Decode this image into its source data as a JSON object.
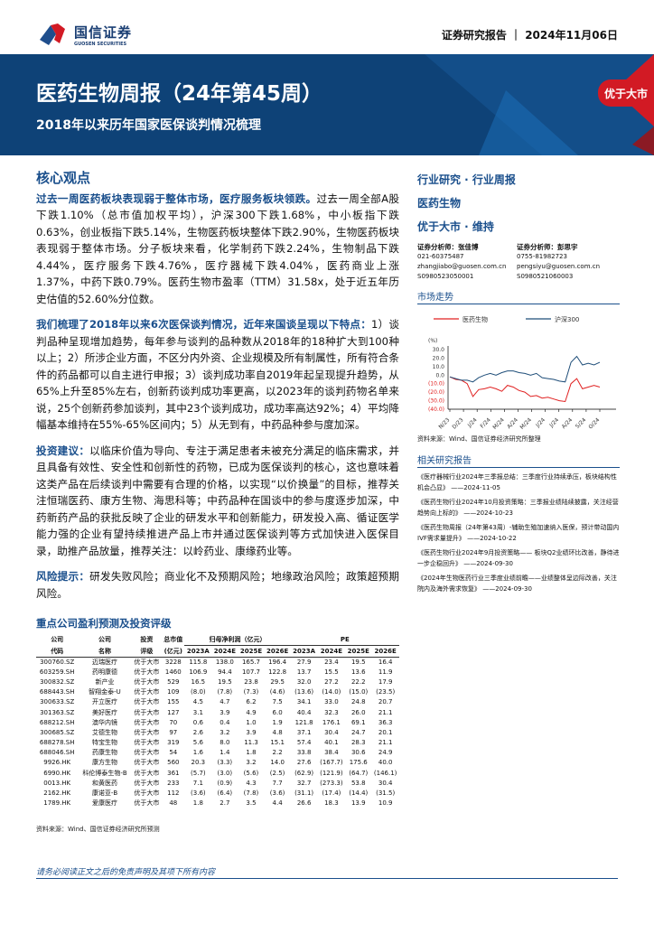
{
  "header": {
    "logo_cn": "国信证券",
    "logo_en": "GUOSEN SECURITIES",
    "doc_type": "证券研究报告",
    "date": "2024年11月06日"
  },
  "banner": {
    "title": "医药生物周报（24年第45周）",
    "subtitle": "2018年以来历年国家医保谈判情况梳理",
    "rating": "优于大市"
  },
  "core": {
    "heading": "核心观点",
    "paras": [
      {
        "lead": "过去一周医药板块表现弱于整体市场，医疗服务板块领跌。",
        "text": "过去一周全部A股下跌1.10%（总市值加权平均），沪深300下跌1.68%，中小板指下跌0.63%，创业板指下跌5.14%，生物医药板块整体下跌2.90%，生物医药板块表现弱于整体市场。分子板块来看，化学制药下跌2.24%，生物制品下跌4.44%，医疗服务下跌4.76%，医疗器械下跌4.04%，医药商业上涨1.37%，中药下跌0.79%。医药生物市盈率（TTM）31.58x，处于近五年历史估值的52.60%分位数。"
      },
      {
        "lead": "我们梳理了2018年以来6次医保谈判情况，近年来国谈呈现以下特点：",
        "text": "1）谈判品种呈现增加趋势，每年参与谈判的品种数从2018年的18种扩大到100种以上；2）所涉企业方面，不区分内外资、企业规模及所有制属性，所有符合条件的药品都可以自主进行申报；3）谈判成功率自2019年起呈现提升趋势，从65%上升至85%左右，创新药谈判成功率更高，以2023年的谈判药物名单来说，25个创新药参加谈判，其中23个谈判成功，成功率高达92%；4）平均降幅基本维持在55%-65%区间内；5）从无到有，中药品种参与度加深。"
      },
      {
        "lead": "投资建议：",
        "text": "以临床价值为导向、专注于满足患者未被充分满足的临床需求，并且具备有效性、安全性和创新性的药物，已成为医保谈判的核心，这也意味着这类产品在后续谈判中需要有合理的价格，以实现“以价换量”的目标，推荐关注恒瑞医药、康方生物、海思科等；中药品种在国谈中的参与度逐步加深，中药新药产品的获批反映了企业的研发水平和创新能力，研发投入高、循证医学能力强的企业有望持续推进产品上市并通过医保谈判等方式加快进入医保目录，助推产品放量，推荐关注：以岭药业、康缘药业等。"
      },
      {
        "lead": "风险提示：",
        "text": "研发失败风险；商业化不及预期风险；地缘政治风险；政策超预期风险。"
      }
    ]
  },
  "side": {
    "category": "行业研究 · 行业周报",
    "industry": "医药生物",
    "rating": "优于大市 · 维持",
    "analysts": [
      {
        "title": "证券分析师：张佳博",
        "phone": "021-60375487",
        "email": "zhangjiabo@guosen.com.cn",
        "cert": "S0980523050001"
      },
      {
        "title": "证券分析师：彭思宇",
        "phone": "0755-81982723",
        "email": "pengsiyu@guosen.com.cn",
        "cert": "S0980521060003"
      }
    ],
    "market_trend": "市场走势",
    "chart_source": "资料来源：Wind、国信证券经济研究所整理",
    "related": "相关研究报告",
    "reports": [
      "《医疗器械行业2024年三季报总结：三季度行业持续承压，板块结构性机会凸显》 ——2024-11-05",
      "《医药生物行业2024年10月投资策略：三季报业绩陆续披露，关注经营趋势向上标的》 ——2024-10-23",
      "《医药生物周报（24年第43周）-辅助生殖加速纳入医保，预计带动国内IVF需求量提升》 ——2024-10-22",
      "《医药生物行业2024年9月投资策略—— 板块Q2业绩环比改善，静待进一步企稳回升》 ——2024-09-30",
      "《2024年生物医药行业三季度业绩前瞻——业绩整体呈边际改善，关注院内及海外需求恢复》 ——2024-09-30"
    ]
  },
  "chart_data": {
    "type": "line",
    "ylabel": "(%)",
    "ylim": [
      -40,
      30
    ],
    "yticks": [
      "30.0",
      "20.0",
      "10.0",
      "0.0",
      "(10.0)",
      "(20.0)",
      "(30.0)",
      "(40.0)"
    ],
    "xticks": [
      "N/23",
      "D/23",
      "J/24",
      "F/24",
      "M/24",
      "A/24",
      "M/24",
      "J/24",
      "J/24",
      "A/24",
      "S/24",
      "O/24"
    ],
    "legend_position": "top",
    "series": [
      {
        "name": "医药生物",
        "color": "#e02020",
        "values": [
          -2,
          -5,
          -6,
          -10,
          -25,
          -17,
          -16,
          -14,
          -16,
          -19,
          -12,
          -14,
          -18,
          -20,
          -25,
          -24,
          -27,
          -26,
          -28,
          -30,
          -31,
          -10,
          -4,
          -16,
          -14,
          -12,
          -14
        ]
      },
      {
        "name": "沪深300",
        "color": "#1f4e79",
        "values": [
          -2,
          -4,
          -6,
          -6,
          -8,
          -3,
          0,
          2,
          0,
          3,
          5,
          5,
          3,
          2,
          0,
          2,
          -3,
          -4,
          -5,
          -7,
          -8,
          15,
          22,
          12,
          14,
          12,
          15
        ]
      }
    ]
  },
  "table": {
    "title": "重点公司盈利预测及投资评级",
    "head1": [
      "公司",
      "公司",
      "投资",
      "总市值",
      "归母净利润（亿元）",
      "PE"
    ],
    "head2": [
      "代码",
      "名称",
      "评级",
      "(亿元)",
      "2023A",
      "2024E",
      "2025E",
      "2026E",
      "2023A",
      "2024E",
      "2025E",
      "2026E"
    ],
    "rows": [
      [
        "300760.SZ",
        "迈瑞医疗",
        "优于大市",
        "3228",
        "115.8",
        "138.0",
        "165.7",
        "196.4",
        "27.9",
        "23.4",
        "19.5",
        "16.4"
      ],
      [
        "603259.SH",
        "药明康德",
        "优于大市",
        "1460",
        "106.9",
        "94.4",
        "107.7",
        "122.8",
        "13.7",
        "15.5",
        "13.6",
        "11.9"
      ],
      [
        "300832.SZ",
        "新产业",
        "优于大市",
        "529",
        "16.5",
        "19.5",
        "23.8",
        "29.5",
        "32.0",
        "27.2",
        "22.2",
        "17.9"
      ],
      [
        "688443.SH",
        "智翔金泰-U",
        "优于大市",
        "109",
        "(8.0)",
        "(7.8)",
        "(7.3)",
        "(4.6)",
        "(13.6)",
        "(14.0)",
        "(15.0)",
        "(23.5)"
      ],
      [
        "300633.SZ",
        "开立医疗",
        "优于大市",
        "155",
        "4.5",
        "4.7",
        "6.2",
        "7.5",
        "34.1",
        "33.0",
        "24.8",
        "20.7"
      ],
      [
        "301363.SZ",
        "美好医疗",
        "优于大市",
        "127",
        "3.1",
        "3.9",
        "4.9",
        "6.0",
        "40.4",
        "32.3",
        "26.0",
        "21.1"
      ],
      [
        "688212.SH",
        "澳华内镜",
        "优于大市",
        "70",
        "0.6",
        "0.4",
        "1.0",
        "1.9",
        "121.8",
        "176.1",
        "69.1",
        "36.3"
      ],
      [
        "300685.SZ",
        "艾德生物",
        "优于大市",
        "97",
        "2.6",
        "3.2",
        "3.9",
        "4.8",
        "37.1",
        "30.4",
        "24.7",
        "20.1"
      ],
      [
        "688278.SH",
        "特宝生物",
        "优于大市",
        "319",
        "5.6",
        "8.0",
        "11.3",
        "15.1",
        "57.4",
        "40.1",
        "28.3",
        "21.1"
      ],
      [
        "688046.SH",
        "药康生物",
        "优于大市",
        "54",
        "1.6",
        "1.4",
        "1.8",
        "2.2",
        "33.8",
        "38.4",
        "30.6",
        "24.9"
      ],
      [
        "9926.HK",
        "康方生物",
        "优于大市",
        "560",
        "20.3",
        "(3.3)",
        "3.2",
        "14.0",
        "27.6",
        "(167.7)",
        "175.6",
        "40.0"
      ],
      [
        "6990.HK",
        "科伦博泰生物-B",
        "优于大市",
        "361",
        "(5.7)",
        "(3.0)",
        "(5.6)",
        "(2.5)",
        "(62.9)",
        "(121.9)",
        "(64.7)",
        "(146.1)"
      ],
      [
        "0013.HK",
        "和黄医药",
        "优于大市",
        "233",
        "7.1",
        "(0.9)",
        "4.3",
        "7.7",
        "32.7",
        "(273.3)",
        "53.8",
        "30.4"
      ],
      [
        "2162.HK",
        "康诺亚-B",
        "优于大市",
        "112",
        "(3.6)",
        "(6.4)",
        "(7.8)",
        "(3.6)",
        "(31.1)",
        "(17.4)",
        "(14.4)",
        "(31.5)"
      ],
      [
        "1789.HK",
        "爱康医疗",
        "优于大市",
        "48",
        "1.8",
        "2.7",
        "3.5",
        "4.4",
        "26.6",
        "18.3",
        "13.9",
        "10.9"
      ]
    ],
    "source": "资料来源：Wind、国信证券经济研究所预测"
  },
  "footer": "请务必阅读正文之后的免责声明及其项下所有内容"
}
